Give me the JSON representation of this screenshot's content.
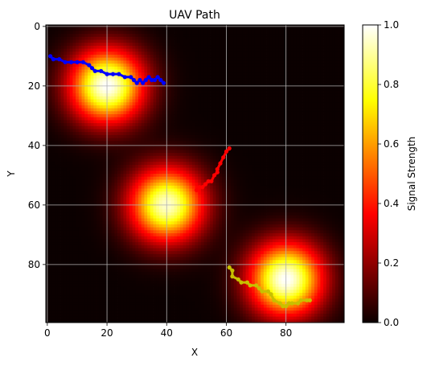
{
  "chart_data": {
    "type": "heatmap",
    "title": "UAV Path",
    "xlabel": "X",
    "ylabel": "Y",
    "grid": true,
    "xlim": [
      -0.5,
      99.5
    ],
    "ylim": [
      99.5,
      -0.5
    ],
    "x_ticks": [
      0,
      20,
      40,
      60,
      80
    ],
    "y_ticks": [
      0,
      20,
      40,
      60,
      80
    ],
    "colormap": "hot",
    "colorbar": {
      "label": "Signal Strength",
      "range": [
        0.0,
        1.0
      ],
      "ticks": [
        0.0,
        0.2,
        0.4,
        0.6,
        0.8,
        1.0
      ],
      "tick_labels": [
        "0.0",
        "0.2",
        "0.4",
        "0.6",
        "0.8",
        "1.0"
      ]
    },
    "signal_sources": [
      {
        "x": 20,
        "y": 20,
        "peak": 1.0
      },
      {
        "x": 40,
        "y": 60,
        "peak": 0.95
      },
      {
        "x": 80,
        "y": 85,
        "peak": 1.0
      }
    ],
    "series": [
      {
        "color": "#0000ff",
        "points": [
          [
            1,
            10
          ],
          [
            2,
            11
          ],
          [
            4,
            11
          ],
          [
            6,
            12
          ],
          [
            8,
            12
          ],
          [
            10,
            12
          ],
          [
            12,
            12
          ],
          [
            14,
            13
          ],
          [
            15,
            14
          ],
          [
            16,
            15
          ],
          [
            18,
            15
          ],
          [
            20,
            16
          ],
          [
            22,
            16
          ],
          [
            24,
            16
          ],
          [
            26,
            17
          ],
          [
            28,
            17
          ],
          [
            29,
            18
          ],
          [
            30,
            19
          ],
          [
            31,
            18
          ],
          [
            32,
            19
          ],
          [
            33,
            18
          ],
          [
            34,
            17
          ],
          [
            35,
            18
          ],
          [
            36,
            18
          ],
          [
            37,
            17
          ],
          [
            38,
            18
          ],
          [
            39,
            19
          ]
        ]
      },
      {
        "color": "#ff0000",
        "points": [
          [
            61,
            41
          ],
          [
            60,
            42
          ],
          [
            59,
            44
          ],
          [
            58,
            46
          ],
          [
            57,
            48
          ],
          [
            57,
            49
          ],
          [
            56,
            50
          ],
          [
            55,
            52
          ],
          [
            54,
            52
          ],
          [
            53,
            53
          ],
          [
            52,
            54
          ],
          [
            51,
            54
          ],
          [
            50,
            55
          ]
        ]
      },
      {
        "color": "#c8c000",
        "points": [
          [
            61,
            81
          ],
          [
            62,
            82
          ],
          [
            62,
            84
          ],
          [
            64,
            85
          ],
          [
            65,
            86
          ],
          [
            67,
            86
          ],
          [
            68,
            87
          ],
          [
            70,
            87
          ],
          [
            71,
            88
          ],
          [
            72,
            89
          ],
          [
            74,
            89
          ],
          [
            75,
            90
          ],
          [
            76,
            92
          ],
          [
            78,
            93
          ],
          [
            79,
            94
          ],
          [
            80,
            94
          ],
          [
            81,
            93
          ],
          [
            82,
            93
          ],
          [
            84,
            93
          ],
          [
            85,
            92
          ],
          [
            87,
            92
          ],
          [
            88,
            92
          ]
        ]
      }
    ]
  }
}
